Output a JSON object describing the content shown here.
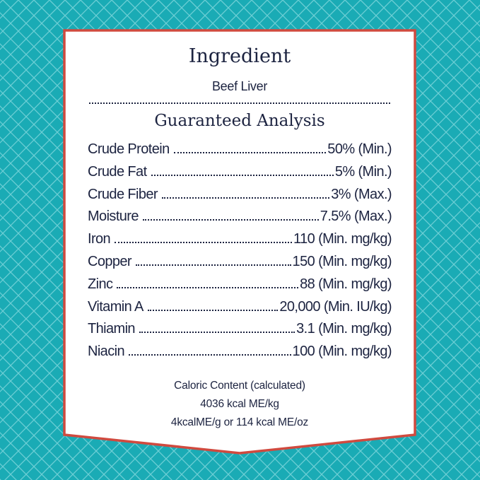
{
  "colors": {
    "background": "#1aabb5",
    "border": "#d04a3f",
    "text": "#1c2340",
    "panel": "#ffffff"
  },
  "ingredient": {
    "heading": "Ingredient",
    "value": "Beef Liver"
  },
  "analysis": {
    "heading": "Guaranteed Analysis",
    "rows": [
      {
        "label": "Crude Protein",
        "value": "50% (Min.)"
      },
      {
        "label": "Crude Fat",
        "value": "5% (Min.)"
      },
      {
        "label": "Crude Fiber",
        "value": "3% (Max.)"
      },
      {
        "label": "Moisture",
        "value": "7.5% (Max.)"
      },
      {
        "label": "Iron",
        "value": "110 (Min. mg/kg)"
      },
      {
        "label": "Copper",
        "value": "150 (Min. mg/kg)"
      },
      {
        "label": "Zinc",
        "value": "88 (Min. mg/kg)"
      },
      {
        "label": "Vitamin A",
        "value": "20,000 (Min. IU/kg)"
      },
      {
        "label": "Thiamin",
        "value": "3.1 (Min. mg/kg)"
      },
      {
        "label": "Niacin",
        "value": "100 (Min. mg/kg)"
      }
    ]
  },
  "caloric": {
    "heading": "Caloric Content (calculated)",
    "line1": "4036 kcal ME/kg",
    "line2": "4kcalME/g or 114 kcal ME/oz"
  }
}
